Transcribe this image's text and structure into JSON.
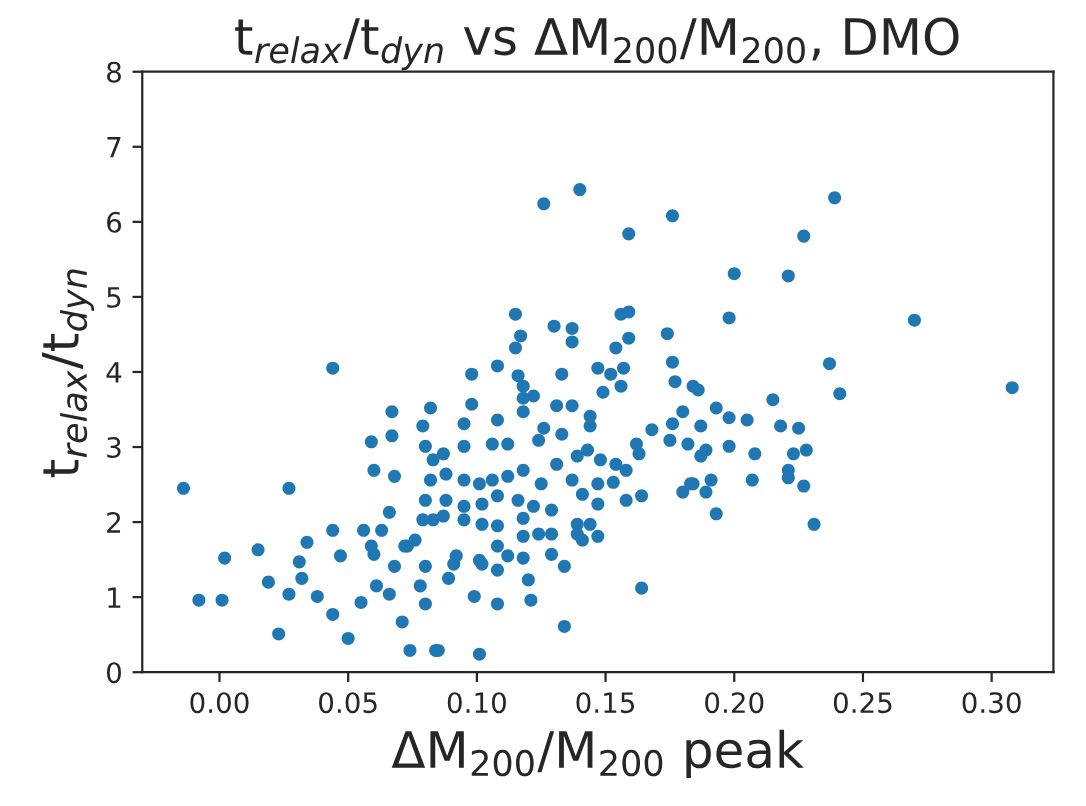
{
  "chart_data": {
    "type": "scatter",
    "title": "t$_{relax}$/t$_{dyn}$ vs ΔM$_{200}$/M$_{200}$, DMO",
    "xlabel": "ΔM$_{200}$/M$_{200}$ peak",
    "ylabel": "t$_{relax}$/t$_{dyn}$",
    "series": [
      {
        "color": "#1f77b4",
        "x": [
          -0.014,
          0.044,
          -0.008,
          0.001,
          0.002,
          0.015,
          0.019,
          0.023,
          0.027,
          0.034,
          0.031,
          0.032,
          0.027,
          0.038,
          0.044,
          0.047,
          0.044,
          0.05,
          0.055,
          0.056,
          0.059,
          0.06,
          0.067,
          0.067,
          0.068,
          0.066,
          0.059,
          0.06,
          0.063,
          0.061,
          0.066,
          0.068,
          0.071,
          0.074,
          0.076,
          0.072,
          0.08,
          0.078,
          0.084,
          0.08,
          0.082,
          0.079,
          0.08,
          0.083,
          0.082,
          0.08,
          0.083,
          0.126,
          0.14,
          0.159,
          0.176,
          0.115,
          0.117,
          0.115,
          0.13,
          0.137,
          0.137,
          0.156,
          0.159,
          0.159,
          0.154,
          0.174,
          0.108,
          0.098,
          0.116,
          0.133,
          0.147,
          0.152,
          0.157,
          0.156,
          0.149,
          0.177,
          0.176,
          0.098,
          0.118,
          0.122,
          0.118,
          0.131,
          0.137,
          0.144,
          0.126,
          0.118,
          0.108,
          0.095,
          0.087,
          0.095,
          0.106,
          0.112,
          0.124,
          0.133,
          0.144,
          0.139,
          0.143,
          0.148,
          0.154,
          0.158,
          0.162,
          0.163,
          0.168,
          0.175,
          0.182,
          0.183,
          0.18,
          0.164,
          0.158,
          0.153,
          0.147,
          0.147,
          0.141,
          0.137,
          0.131,
          0.125,
          0.118,
          0.112,
          0.106,
          0.101,
          0.095,
          0.088,
          0.088,
          0.095,
          0.102,
          0.108,
          0.116,
          0.122,
          0.129,
          0.139,
          0.144,
          0.147,
          0.141,
          0.139,
          0.129,
          0.124,
          0.118,
          0.118,
          0.108,
          0.102,
          0.095,
          0.087,
          0.079,
          0.092,
          0.101,
          0.108,
          0.112,
          0.118,
          0.129,
          0.108,
          0.102,
          0.091,
          0.089,
          0.12,
          0.134,
          0.099,
          0.108,
          0.121,
          0.085,
          0.101,
          0.134,
          0.164,
          0.073,
          0.239,
          0.227,
          0.2,
          0.221,
          0.198,
          0.27,
          0.308,
          0.237,
          0.241,
          0.184,
          0.186,
          0.215,
          0.193,
          0.18,
          0.198,
          0.205,
          0.176,
          0.187,
          0.218,
          0.225,
          0.198,
          0.189,
          0.187,
          0.208,
          0.223,
          0.228,
          0.221,
          0.221,
          0.207,
          0.191,
          0.184,
          0.189,
          0.227,
          0.193,
          0.231
        ],
        "values": [
          2.45,
          4.05,
          0.96,
          0.96,
          1.52,
          1.63,
          1.2,
          0.51,
          2.45,
          1.73,
          1.47,
          1.25,
          1.04,
          1.01,
          1.89,
          1.55,
          0.77,
          0.45,
          0.93,
          1.89,
          3.07,
          2.69,
          3.47,
          3.15,
          2.61,
          2.13,
          1.68,
          1.57,
          1.89,
          1.15,
          1.04,
          1.41,
          0.67,
          0.29,
          1.76,
          1.68,
          1.41,
          1.15,
          0.29,
          0.91,
          3.52,
          3.28,
          3.01,
          2.83,
          2.56,
          2.29,
          2.03,
          6.24,
          6.43,
          5.84,
          6.08,
          4.77,
          4.48,
          4.32,
          4.61,
          4.58,
          4.4,
          4.77,
          4.8,
          4.45,
          4.32,
          4.51,
          4.08,
          3.97,
          3.95,
          3.97,
          4.05,
          3.97,
          4.05,
          3.81,
          3.73,
          3.87,
          4.13,
          3.57,
          3.81,
          3.68,
          3.65,
          3.55,
          3.55,
          3.41,
          3.25,
          3.47,
          3.36,
          3.31,
          2.91,
          3.01,
          3.04,
          3.04,
          3.09,
          3.17,
          3.28,
          2.88,
          2.96,
          2.83,
          2.77,
          2.69,
          3.04,
          2.91,
          3.23,
          3.09,
          3.04,
          2.51,
          2.4,
          2.35,
          2.29,
          2.53,
          2.51,
          2.24,
          2.37,
          2.56,
          2.77,
          2.51,
          2.69,
          2.61,
          2.56,
          2.51,
          2.56,
          2.64,
          2.29,
          2.21,
          2.24,
          2.35,
          2.29,
          2.21,
          2.16,
          1.97,
          1.97,
          1.81,
          1.76,
          1.84,
          1.84,
          1.84,
          2.05,
          1.81,
          1.95,
          1.97,
          2.03,
          2.08,
          2.03,
          1.55,
          1.49,
          1.68,
          1.55,
          1.52,
          1.57,
          1.36,
          1.44,
          1.44,
          1.25,
          1.23,
          1.41,
          1.01,
          0.91,
          0.96,
          0.29,
          0.24,
          0.61,
          1.12,
          1.68,
          6.32,
          5.81,
          5.31,
          5.28,
          4.72,
          4.69,
          3.79,
          4.11,
          3.71,
          3.81,
          3.76,
          3.63,
          3.52,
          3.47,
          3.39,
          3.36,
          3.31,
          3.28,
          3.28,
          3.25,
          3.01,
          2.96,
          2.88,
          2.91,
          2.91,
          2.96,
          2.69,
          2.59,
          2.56,
          2.56,
          2.51,
          2.4,
          2.48,
          2.11,
          1.97
        ]
      }
    ],
    "marker": "circle",
    "xlim": [
      -0.03,
      0.324
    ],
    "ylim": [
      0,
      8
    ],
    "xticks": [
      {
        "value": 0,
        "label": "0.00"
      },
      {
        "value": 0.05,
        "label": "0.05"
      },
      {
        "value": 0.1,
        "label": "0.10"
      },
      {
        "value": 0.15,
        "label": "0.15"
      },
      {
        "value": 0.2,
        "label": "0.20"
      },
      {
        "value": 0.25,
        "label": "0.25"
      },
      {
        "value": 0.3,
        "label": "0.30"
      }
    ],
    "yticks": [
      0,
      1,
      2,
      3,
      4,
      5,
      6,
      7,
      8
    ]
  }
}
